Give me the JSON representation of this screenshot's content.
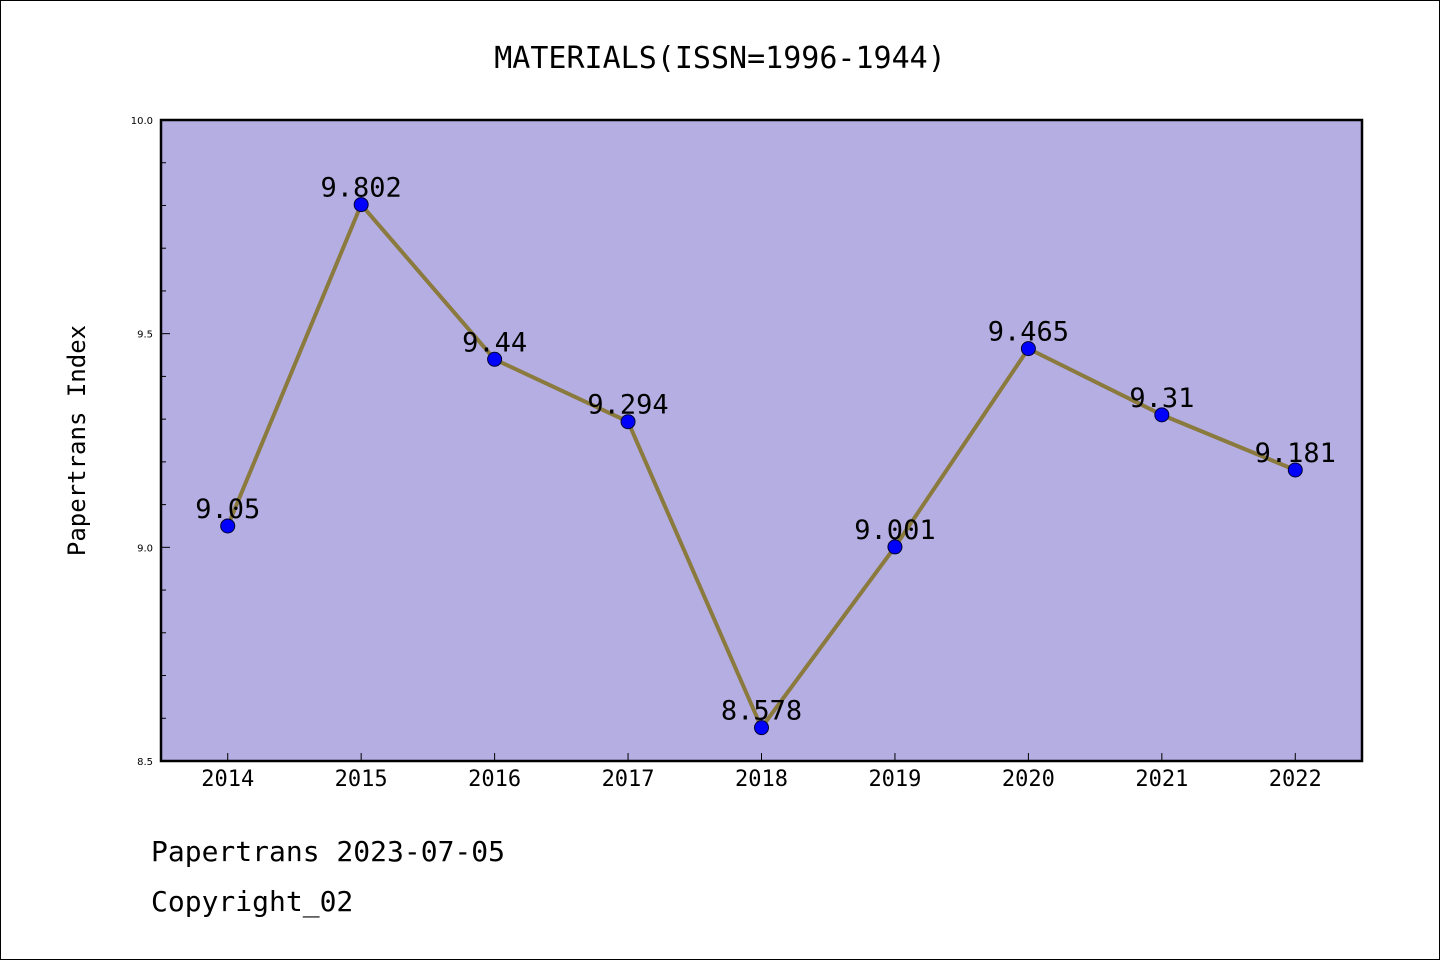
{
  "chart_data": {
    "type": "line",
    "title": "MATERIALS(ISSN=1996-1944)",
    "xlabel": "",
    "ylabel": "Papertrans Index",
    "x": [
      "2014",
      "2015",
      "2016",
      "2017",
      "2018",
      "2019",
      "2020",
      "2021",
      "2022"
    ],
    "series": [
      {
        "values": [
          9.05,
          9.802,
          9.44,
          9.294,
          8.578,
          9.001,
          9.465,
          9.31,
          9.181
        ]
      }
    ],
    "data_labels": [
      "9.05",
      "9.802",
      "9.44",
      "9.294",
      "8.578",
      "9.001",
      "9.465",
      "9.31",
      "9.181"
    ],
    "ylim": [
      8.5,
      10.0
    ],
    "yticks": [
      "8.5",
      "9.0",
      "9.5",
      "10.0"
    ],
    "grid": false,
    "legend": "none",
    "colors": {
      "plot_background": "#b5aee2",
      "line": "#8b7a3e",
      "marker": "#0000ff"
    }
  },
  "footer": {
    "line1": "Papertrans 2023-07-05",
    "line2": "Copyright_02"
  }
}
